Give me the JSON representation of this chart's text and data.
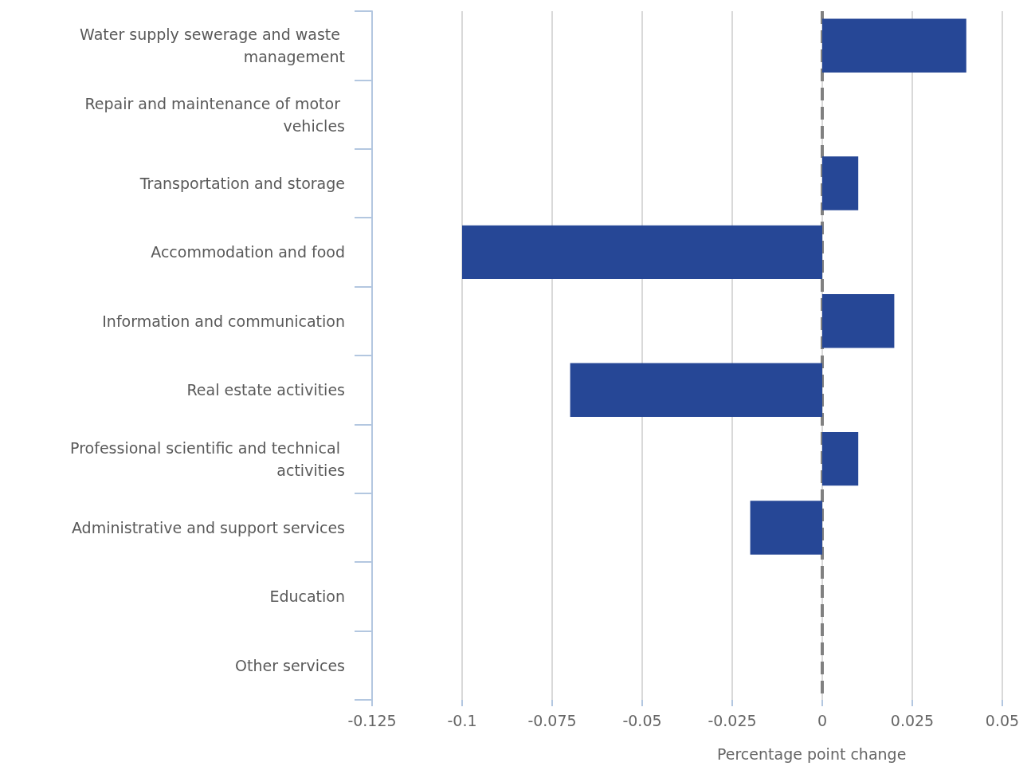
{
  "chart_data": {
    "type": "bar",
    "orientation": "horizontal",
    "xlabel": "Percentage point change",
    "categories": [
      "Water supply sewerage and waste management",
      "Repair and maintenance of motor vehicles",
      "Transportation and storage",
      "Accommodation and food",
      "Information and communication",
      "Real estate activities",
      "Professional scientific and technical activities",
      "Administrative and support services",
      "Education",
      "Other services"
    ],
    "values": [
      0.04,
      0,
      0.01,
      -0.1,
      0.02,
      -0.07,
      0.01,
      -0.02,
      0,
      0
    ],
    "color": "#264796",
    "xlim": [
      -0.125,
      0.05
    ],
    "xticks": [
      -0.125,
      -0.1,
      -0.075,
      -0.05,
      -0.025,
      0,
      0.025,
      0.05
    ],
    "grid": "x",
    "ref_lines": [
      {
        "axis": "x",
        "value": 0,
        "color": "#808080",
        "line_style": "dashed"
      }
    ]
  }
}
